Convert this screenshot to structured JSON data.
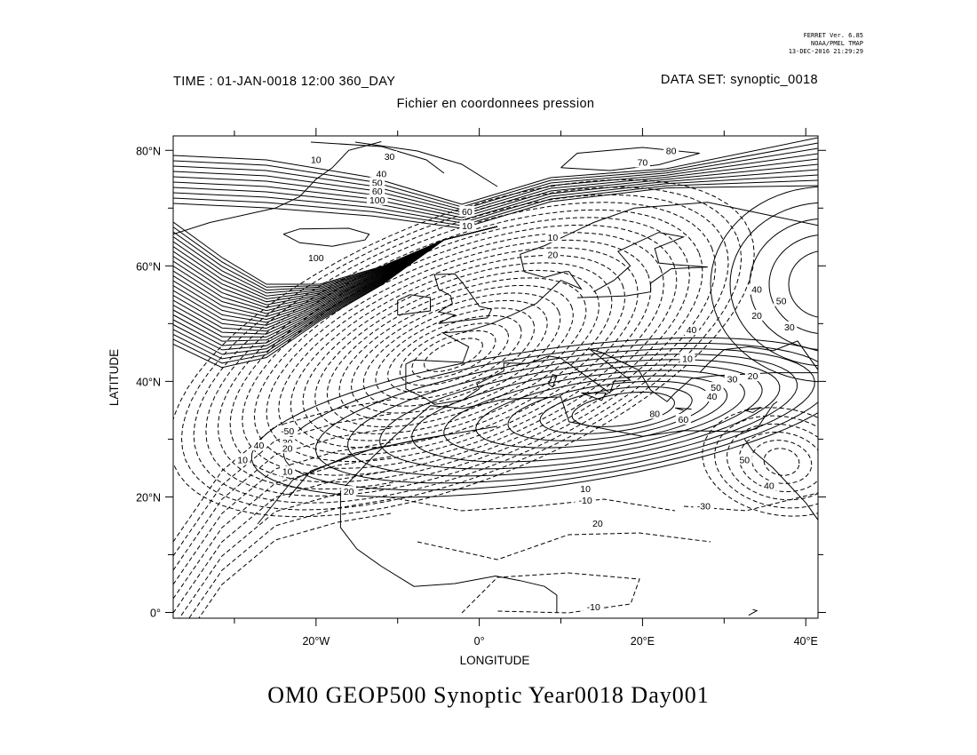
{
  "stamp": {
    "line1": "FERRET Ver. 6.85",
    "line2": "NOAA/PMEL TMAP",
    "line3": "13-DEC-2016 21:29:29"
  },
  "header": {
    "time": "TIME : 01-JAN-0018 12:00 360_DAY",
    "dataset": "DATA SET: synoptic_0018",
    "subtitle": "Fichier en coordonnees pression"
  },
  "map": {
    "xlabel": "LONGITUDE",
    "ylabel": "LATITUDE",
    "x_ticks": [
      {
        "value": -20,
        "label": "20°W"
      },
      {
        "value": 0,
        "label": "0°"
      },
      {
        "value": 20,
        "label": "20°E"
      },
      {
        "value": 40,
        "label": "40°E"
      }
    ],
    "y_ticks": [
      {
        "value": 80,
        "label": "80°N"
      },
      {
        "value": 60,
        "label": "60°N"
      },
      {
        "value": 40,
        "label": "40°N"
      },
      {
        "value": 20,
        "label": "20°N"
      },
      {
        "value": 0,
        "label": "0°"
      }
    ],
    "xlim": [
      -37.5,
      41.5
    ],
    "ylim": [
      -1,
      82.5
    ],
    "contour_labels": [
      {
        "text": "80",
        "lon": 23.5,
        "lat": 79.5
      },
      {
        "text": "70",
        "lon": 20,
        "lat": 77.5
      },
      {
        "text": "10",
        "lon": -20,
        "lat": 78
      },
      {
        "text": "30",
        "lon": -11,
        "lat": 78.5
      },
      {
        "text": "40",
        "lon": -12,
        "lat": 75.5
      },
      {
        "text": "50",
        "lon": -12.5,
        "lat": 74
      },
      {
        "text": "60",
        "lon": -12.5,
        "lat": 72.5
      },
      {
        "text": "100",
        "lon": -12.5,
        "lat": 71
      },
      {
        "text": "60",
        "lon": -1.5,
        "lat": 69
      },
      {
        "text": "10",
        "lon": -1.5,
        "lat": 66.5
      },
      {
        "text": "100",
        "lon": -20,
        "lat": 61
      },
      {
        "text": "10",
        "lon": 9,
        "lat": 64.5
      },
      {
        "text": "20",
        "lon": 9,
        "lat": 61.5
      },
      {
        "text": "40",
        "lon": 34,
        "lat": 55.5
      },
      {
        "text": "50",
        "lon": 37,
        "lat": 53.5
      },
      {
        "text": "20",
        "lon": 34,
        "lat": 51
      },
      {
        "text": "30",
        "lon": 38,
        "lat": 49
      },
      {
        "text": "40",
        "lon": 26,
        "lat": 48.5
      },
      {
        "text": "10",
        "lon": 25.5,
        "lat": 43.5
      },
      {
        "text": "30",
        "lon": 31,
        "lat": 40
      },
      {
        "text": "20",
        "lon": 33.5,
        "lat": 40.5
      },
      {
        "text": "40",
        "lon": 28.5,
        "lat": 37
      },
      {
        "text": "50",
        "lon": 29,
        "lat": 38.5
      },
      {
        "text": "60",
        "lon": 25,
        "lat": 33
      },
      {
        "text": "80",
        "lon": 21.5,
        "lat": 34
      },
      {
        "text": "-50",
        "lon": -23.5,
        "lat": 31
      },
      {
        "text": "30",
        "lon": -23.5,
        "lat": 29
      },
      {
        "text": "20",
        "lon": -23.5,
        "lat": 28
      },
      {
        "text": "40",
        "lon": -27,
        "lat": 28.5
      },
      {
        "text": "10",
        "lon": -29,
        "lat": 26
      },
      {
        "text": "10",
        "lon": -23.5,
        "lat": 24
      },
      {
        "text": "20",
        "lon": -16,
        "lat": 20.5
      },
      {
        "text": "10",
        "lon": 13,
        "lat": 21
      },
      {
        "text": "-10",
        "lon": 13,
        "lat": 19
      },
      {
        "text": "20",
        "lon": 14.5,
        "lat": 15
      },
      {
        "text": "-30",
        "lon": 27.5,
        "lat": 18
      },
      {
        "text": "50",
        "lon": 32.5,
        "lat": 26
      },
      {
        "text": "40",
        "lon": 35.5,
        "lat": 21.5
      },
      {
        "text": "-10",
        "lon": 14,
        "lat": 0.5
      }
    ]
  },
  "bottom_title": "OM0 GEOP500 Synoptic Year0018 Day001"
}
